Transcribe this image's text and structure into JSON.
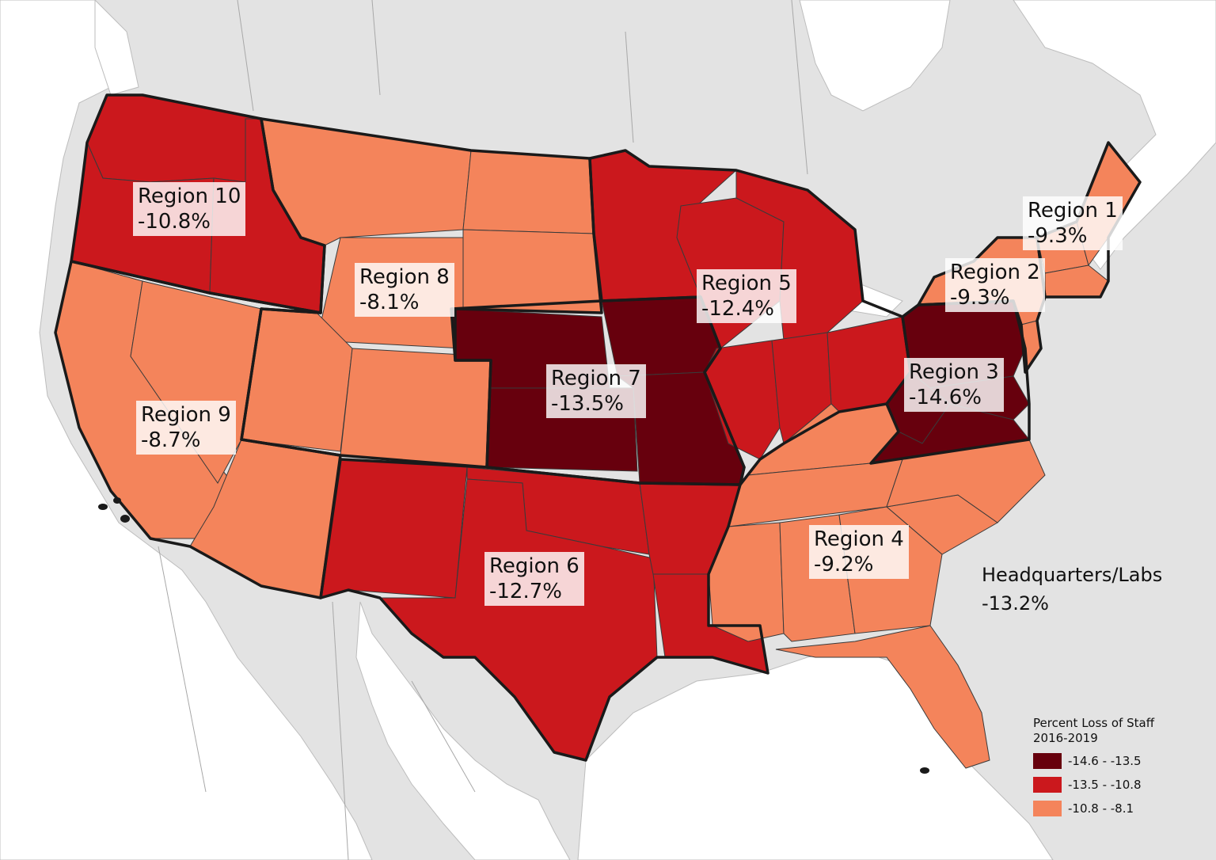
{
  "regions": [
    {
      "name": "Region 1",
      "value": "-9.3%"
    },
    {
      "name": "Region 2",
      "value": "-9.3%"
    },
    {
      "name": "Region 3",
      "value": "-14.6%"
    },
    {
      "name": "Region 4",
      "value": "-9.2%"
    },
    {
      "name": "Region 5",
      "value": "-12.4%"
    },
    {
      "name": "Region 6",
      "value": "-12.7%"
    },
    {
      "name": "Region 7",
      "value": "-13.5%"
    },
    {
      "name": "Region 8",
      "value": "-8.1%"
    },
    {
      "name": "Region 9",
      "value": "-8.7%"
    },
    {
      "name": "Region 10",
      "value": "-10.8%"
    }
  ],
  "headquarters": {
    "name": "Headquarters/Labs",
    "value": "-13.2%"
  },
  "legend": {
    "title_line1": "Percent Loss of Staff",
    "title_line2": "2016-2019",
    "classes": [
      {
        "label": "-14.6 - -13.5",
        "color": "#67000d"
      },
      {
        "label": "-13.5 - -10.8",
        "color": "#cb181d"
      },
      {
        "label": "-10.8 - -8.1",
        "color": "#f4845b"
      }
    ]
  },
  "colors": {
    "land": "#e3e3e3",
    "water": "#ffffff",
    "border": "#1a1a1a"
  }
}
